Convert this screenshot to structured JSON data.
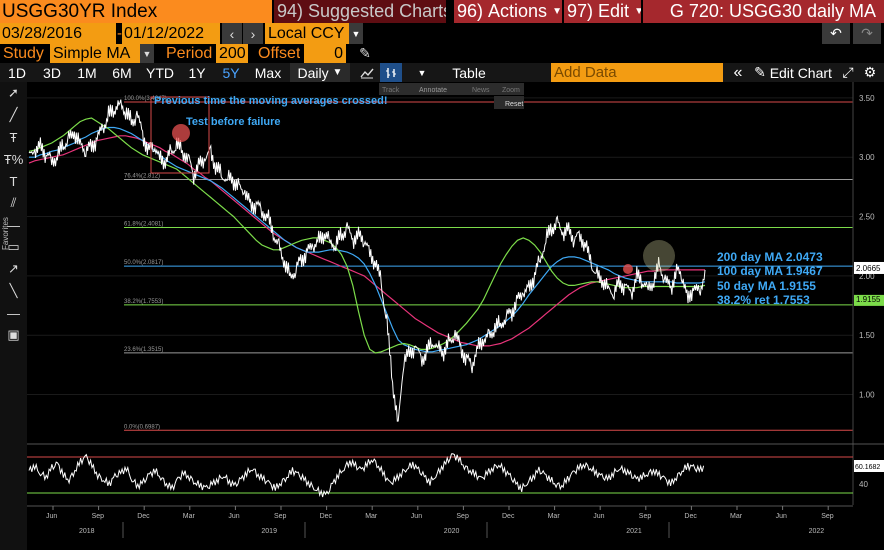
{
  "header": {
    "ticker": "USGG30YR Index",
    "suggested_num": "94)",
    "suggested_label": "Suggested Charts",
    "actions_num": "96)",
    "actions_label": "Actions",
    "edit_num": "97)",
    "edit_label": "Edit",
    "title": "G 720: USGG30 daily MA"
  },
  "range": {
    "start": "03/28/2016",
    "end": "01/12/2022",
    "currency": "Local CCY"
  },
  "study": {
    "study_label": "Study",
    "study_value": "Simple MA",
    "period_label": "Period",
    "period_value": "200",
    "offset_label": "Offset",
    "offset_value": "0"
  },
  "toolbar": {
    "timeframes": [
      "1D",
      "3D",
      "1M",
      "6M",
      "YTD",
      "1Y",
      "5Y",
      "Max"
    ],
    "selected_timeframe": "5Y",
    "frequency": "Daily",
    "table_label": "Table",
    "add_data_placeholder": "Add Data",
    "edit_chart_label": "Edit Chart"
  },
  "chart_toolbar": {
    "items": [
      "Track",
      "Annotate",
      "News",
      "Zoom"
    ],
    "reset": "Reset"
  },
  "sidebar": {
    "favorites_label": "Favorites"
  },
  "colors": {
    "price": "#ffffff",
    "ma200": "#e8347a",
    "ma100": "#3fa9f5",
    "ma50": "#7cdc4a",
    "fib_high": "#d84a4a",
    "fib_38": "#7cdc4a",
    "fib_50": "#3fa9f5",
    "fib_61": "#7cdc4a",
    "annotation_text": "#3fa9f5",
    "label_bg_price": "#ffffff",
    "label_bg_ma50": "#7cdc4a"
  },
  "annotations": {
    "text1": "Previous time the moving averages crossed!",
    "text2": "Test before failure"
  },
  "chart_data": {
    "type": "line",
    "ylim": [
      0.6,
      3.6
    ],
    "yticks": [
      "3.50",
      "3.00",
      "2.50",
      "2.00",
      "1.50",
      "1.00"
    ],
    "ytick_values": [
      3.5,
      3.0,
      2.5,
      2.0,
      1.5,
      1.0
    ],
    "months": [
      "Jun",
      "Sep",
      "Dec",
      "Mar",
      "Jun",
      "Sep",
      "Dec",
      "Mar",
      "Jun",
      "Sep",
      "Dec",
      "Mar",
      "Jun",
      "Sep",
      "Dec",
      "Mar",
      "Jun",
      "Sep"
    ],
    "years": [
      "2018",
      "2019",
      "2020",
      "2021",
      "2022"
    ],
    "fib_levels": [
      {
        "label": "100.0%(3.4647)",
        "value": 3.4647
      },
      {
        "label": "76.4%(2.812)",
        "value": 2.812
      },
      {
        "label": "61.8%(2.4081)",
        "value": 2.4081
      },
      {
        "label": "50.0%(2.0817)",
        "value": 2.0817
      },
      {
        "label": "38.2%(1.7553)",
        "value": 1.7553
      },
      {
        "label": "23.6%(1.3515)",
        "value": 1.3515
      },
      {
        "label": "0.0%(0.6987)",
        "value": 0.6987
      }
    ],
    "legend": [
      {
        "name": "200 day MA 2.0473",
        "value": 2.0473
      },
      {
        "name": "100 day MA 1.9467",
        "value": 1.9467
      },
      {
        "name": "50 day MA 1.9155",
        "value": 1.9155
      },
      {
        "name": "38.2% ret 1.7553",
        "value": 1.7553
      }
    ],
    "last_price_label": "2.0665",
    "last_price": 2.0665,
    "ma50_label": "1.9155",
    "price_series": [
      3.0,
      3.05,
      3.1,
      3.02,
      2.98,
      3.0,
      3.1,
      3.15,
      3.2,
      3.12,
      3.05,
      3.1,
      3.15,
      3.25,
      3.35,
      3.4,
      3.46,
      3.38,
      3.3,
      3.35,
      3.2,
      3.05,
      3.1,
      3.0,
      2.95,
      3.05,
      3.1,
      3.05,
      3.0,
      2.85,
      2.95,
      2.98,
      3.05,
      2.9,
      2.85,
      2.82,
      2.8,
      2.75,
      2.7,
      2.6,
      2.6,
      2.55,
      2.5,
      2.35,
      2.25,
      2.1,
      2.0,
      2.05,
      2.15,
      2.2,
      2.25,
      2.3,
      2.35,
      2.3,
      2.25,
      2.35,
      2.4,
      2.3,
      2.35,
      2.3,
      2.2,
      2.1,
      1.95,
      1.6,
      1.1,
      0.75,
      1.3,
      1.35,
      1.4,
      1.3,
      1.35,
      1.45,
      1.4,
      1.35,
      1.45,
      1.5,
      1.4,
      1.3,
      1.25,
      1.4,
      1.45,
      1.5,
      1.55,
      1.6,
      1.65,
      1.7,
      1.8,
      1.85,
      1.9,
      2.0,
      2.15,
      2.3,
      2.4,
      2.45,
      2.35,
      2.4,
      2.3,
      2.35,
      2.25,
      2.1,
      2.0,
      1.95,
      1.9,
      1.85,
      1.95,
      1.9,
      1.85,
      2.0,
      1.95,
      1.9,
      1.95,
      2.1,
      1.95,
      1.9,
      2.05,
      2.0,
      1.8,
      1.9,
      1.85,
      2.05
    ],
    "ma200_series": [
      2.95,
      2.97,
      2.98,
      2.99,
      3.0,
      3.01,
      3.02,
      3.04,
      3.06,
      3.08,
      3.1,
      3.12,
      3.14,
      3.15,
      3.16,
      3.17,
      3.18,
      3.18,
      3.17,
      3.16,
      3.14,
      3.12,
      3.1,
      3.08,
      3.05,
      3.03,
      3.0,
      2.97,
      2.94,
      2.9,
      2.87,
      2.83,
      2.8,
      2.76,
      2.72,
      2.68,
      2.64,
      2.6,
      2.56,
      2.52,
      2.48,
      2.44,
      2.4,
      2.36,
      2.33,
      2.3,
      2.27,
      2.24,
      2.22,
      2.2,
      2.18,
      2.16,
      2.14,
      2.12,
      2.1,
      2.08,
      2.06,
      2.04,
      2.02,
      2.0,
      1.96,
      1.92,
      1.88,
      1.84,
      1.8,
      1.76,
      1.72,
      1.68,
      1.64,
      1.61,
      1.58,
      1.55,
      1.52,
      1.5,
      1.48,
      1.46,
      1.44,
      1.43,
      1.42,
      1.41,
      1.41,
      1.41,
      1.42,
      1.43,
      1.45,
      1.47,
      1.5,
      1.53,
      1.56,
      1.6,
      1.64,
      1.68,
      1.72,
      1.76,
      1.8,
      1.84,
      1.87,
      1.9,
      1.92,
      1.94,
      1.95,
      1.96,
      1.97,
      1.98,
      1.99,
      2.0,
      2.01,
      2.02,
      2.03,
      2.04,
      2.04,
      2.05,
      2.05,
      2.05,
      2.05,
      2.05,
      2.05,
      2.05,
      2.05,
      2.05
    ],
    "ma100_series": [
      3.0,
      3.0,
      3.02,
      3.03,
      3.05,
      3.06,
      3.08,
      3.1,
      3.12,
      3.15,
      3.17,
      3.2,
      3.22,
      3.24,
      3.25,
      3.25,
      3.24,
      3.22,
      3.2,
      3.17,
      3.14,
      3.1,
      3.06,
      3.02,
      2.98,
      2.95,
      2.92,
      2.9,
      2.88,
      2.86,
      2.84,
      2.82,
      2.8,
      2.77,
      2.74,
      2.7,
      2.66,
      2.62,
      2.58,
      2.54,
      2.5,
      2.46,
      2.42,
      2.38,
      2.34,
      2.3,
      2.27,
      2.24,
      2.22,
      2.2,
      2.2,
      2.2,
      2.21,
      2.22,
      2.22,
      2.21,
      2.2,
      2.18,
      2.15,
      2.1,
      2.02,
      1.92,
      1.8,
      1.68,
      1.56,
      1.46,
      1.42,
      1.4,
      1.38,
      1.37,
      1.36,
      1.36,
      1.37,
      1.38,
      1.39,
      1.4,
      1.41,
      1.42,
      1.44,
      1.46,
      1.49,
      1.52,
      1.55,
      1.58,
      1.62,
      1.66,
      1.71,
      1.77,
      1.84,
      1.9,
      1.96,
      2.02,
      2.08,
      2.12,
      2.15,
      2.16,
      2.16,
      2.15,
      2.13,
      2.11,
      2.09,
      2.07,
      2.05,
      2.02,
      2.0,
      1.98,
      1.97,
      1.96,
      1.95,
      1.95,
      1.95,
      1.95,
      1.95,
      1.95,
      1.94,
      1.94,
      1.94,
      1.94,
      1.94,
      1.95
    ],
    "ma50_series": [
      3.05,
      3.06,
      3.08,
      3.1,
      3.12,
      3.15,
      3.18,
      3.22,
      3.26,
      3.3,
      3.32,
      3.33,
      3.3,
      3.27,
      3.24,
      3.2,
      3.16,
      3.12,
      3.08,
      3.05,
      3.02,
      3.0,
      2.98,
      2.96,
      2.94,
      2.92,
      2.9,
      2.86,
      2.82,
      2.78,
      2.74,
      2.7,
      2.66,
      2.62,
      2.58,
      2.54,
      2.5,
      2.45,
      2.4,
      2.35,
      2.3,
      2.26,
      2.24,
      2.22,
      2.22,
      2.24,
      2.26,
      2.28,
      2.3,
      2.31,
      2.32,
      2.32,
      2.3,
      2.28,
      2.24,
      2.18,
      2.08,
      1.92,
      1.7,
      1.5,
      1.38,
      1.35,
      1.36,
      1.38,
      1.4,
      1.42,
      1.43,
      1.42,
      1.4,
      1.38,
      1.38,
      1.39,
      1.41,
      1.43,
      1.46,
      1.5,
      1.55,
      1.6,
      1.66,
      1.72,
      1.8,
      1.9,
      2.0,
      2.1,
      2.18,
      2.25,
      2.3,
      2.32,
      2.3,
      2.26,
      2.2,
      2.12,
      2.04,
      1.98,
      1.94,
      1.92,
      1.92,
      1.93,
      1.94,
      1.95,
      1.95,
      1.94,
      1.93,
      1.92,
      1.91,
      1.9,
      1.9,
      1.9,
      1.91,
      1.91,
      1.91,
      1.91,
      1.91,
      1.91,
      1.91,
      1.91,
      1.91,
      1.91,
      1.91,
      1.92
    ],
    "rsi": {
      "ylim": [
        20,
        80
      ],
      "tick": "40",
      "last_label": "60.1682",
      "upper": 70,
      "lower": 30,
      "series": [
        55,
        60,
        52,
        48,
        58,
        62,
        50,
        45,
        55,
        65,
        70,
        60,
        50,
        45,
        40,
        48,
        52,
        58,
        45,
        38,
        42,
        50,
        55,
        48,
        40,
        35,
        45,
        52,
        48,
        42,
        38,
        35,
        40,
        45,
        50,
        42,
        38,
        45,
        52,
        58,
        50,
        45,
        40,
        35,
        42,
        48,
        55,
        50,
        45,
        40,
        35,
        30,
        28,
        40,
        50,
        58,
        65,
        60,
        55,
        62,
        68,
        60,
        50,
        40,
        45,
        52,
        58,
        62,
        55,
        48,
        42,
        50,
        58,
        65,
        72,
        68,
        60,
        55,
        50,
        45,
        52,
        58,
        62,
        55,
        48,
        40,
        35,
        42,
        48,
        55,
        50,
        45,
        40,
        38,
        45,
        52,
        58,
        62,
        58,
        52,
        48,
        45,
        52,
        58,
        55,
        50,
        45,
        48,
        52,
        55,
        50,
        45,
        40,
        48,
        55,
        60,
        58,
        55,
        60
      ]
    }
  }
}
